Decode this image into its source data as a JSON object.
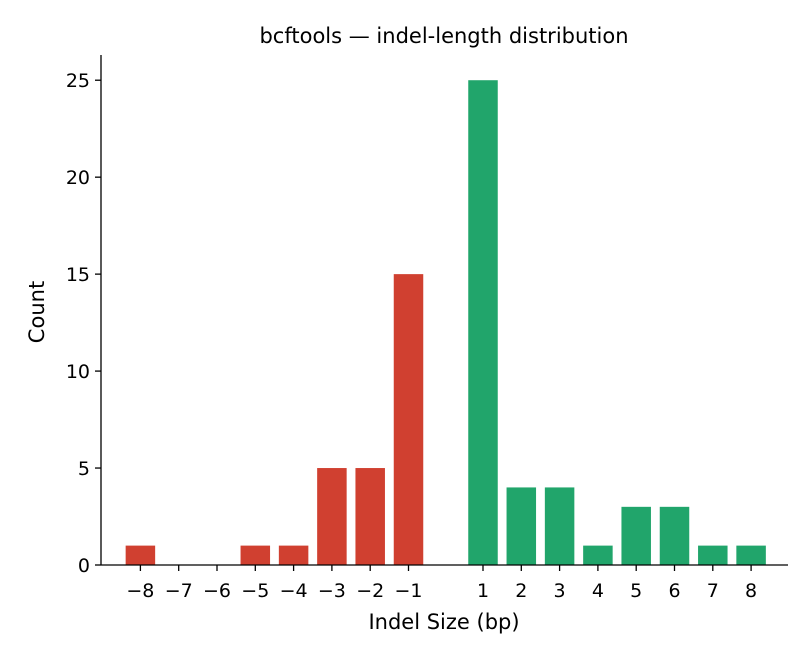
{
  "chart_data": {
    "type": "bar",
    "title": "bcftools — indel-length distribution",
    "xlabel": "Indel Size (bp)",
    "ylabel": "Count",
    "categories": [
      "−8",
      "−7",
      "−6",
      "−5",
      "−4",
      "−3",
      "−2",
      "−1",
      "1",
      "2",
      "3",
      "4",
      "5",
      "6",
      "7",
      "8"
    ],
    "x": [
      -8,
      -7,
      -6,
      -5,
      -4,
      -3,
      -2,
      -1,
      1,
      2,
      3,
      4,
      5,
      6,
      7,
      8
    ],
    "values": [
      1,
      0,
      0,
      1,
      1,
      5,
      5,
      15,
      25,
      4,
      4,
      1,
      3,
      3,
      1,
      1
    ],
    "yticks": [
      0,
      5,
      10,
      15,
      20,
      25
    ],
    "ylim": [
      0,
      26.3
    ],
    "grid": false,
    "colors": {
      "deletion": "#d04030",
      "insertion": "#21a56b"
    }
  }
}
